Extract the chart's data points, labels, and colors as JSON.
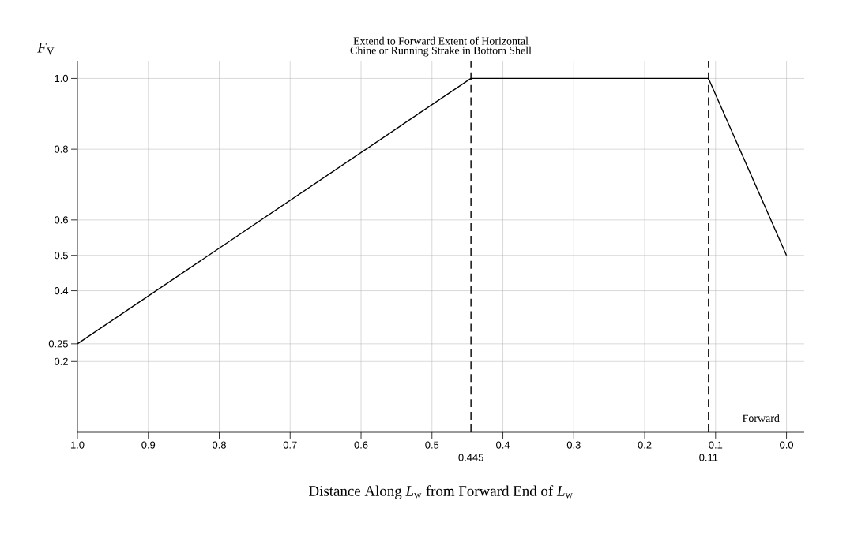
{
  "chart_data": {
    "type": "line",
    "title": "Extend to Forward Extent of Horizontal Chine or Running Strake in Bottom Shell",
    "xlabel": "Distance Along *L*$_{w}$ from Forward End of *L*$_{w}$",
    "ylabel": "*F*$_{V}$",
    "x": [
      1.0,
      0.445,
      0.11,
      0.0
    ],
    "series": [
      {
        "color": "#000000",
        "values": [
          0.25,
          1.0,
          1.0,
          0.5
        ]
      }
    ],
    "xlim": [
      1.0,
      -0.025
    ],
    "ylim": [
      0,
      1.05
    ],
    "xticks": [
      {
        "value": 1.0,
        "label": "1.0"
      },
      0.9,
      0.8,
      0.7,
      0.6,
      0.5,
      0.4,
      0.3,
      0.2,
      0.1,
      {
        "value": 0.0,
        "label": "0.0"
      }
    ],
    "yticks": [
      0.2,
      0.25,
      0.4,
      0.5,
      0.6,
      0.8,
      {
        "value": 1.0,
        "label": "1.0"
      }
    ],
    "ref_lines": [
      {
        "axis": "x",
        "value": 0.445,
        "label": "0.445",
        "line_style": "dashed"
      },
      {
        "axis": "x",
        "value": 0.11,
        "label": "0.11",
        "line_style": "dashed"
      }
    ],
    "annotations": [
      "Forward"
    ],
    "grid": true,
    "marker": "none",
    "line_style": "solid"
  }
}
